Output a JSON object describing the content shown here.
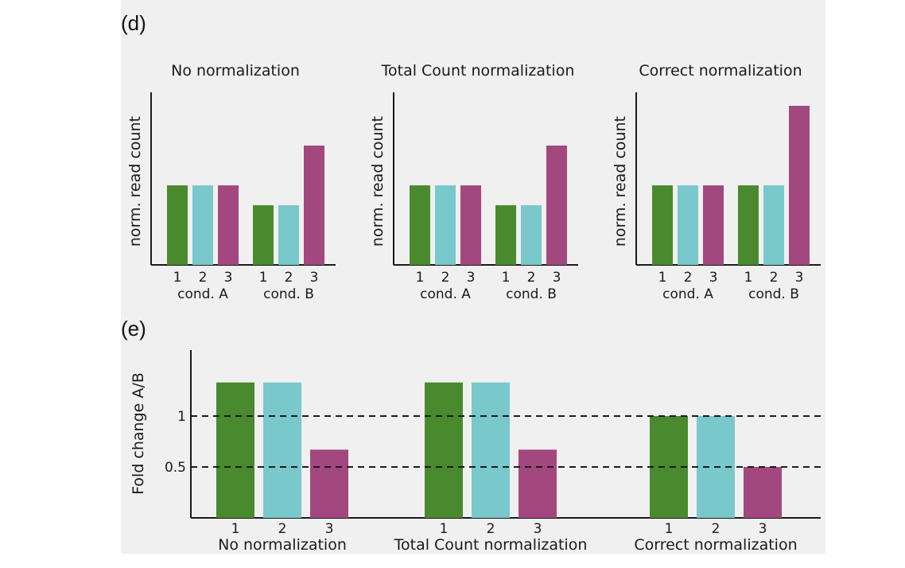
{
  "figure": {
    "panel_d_label": "(d)",
    "panel_e_label": "(e)"
  },
  "colors": {
    "rep1": "#4a8a2e",
    "rep2": "#79c8cc",
    "rep3": "#a3487e",
    "axis": "#1a1a1a"
  },
  "chart_data": [
    {
      "type": "bar",
      "title": "No normalization",
      "ylabel": "norm. read count",
      "groups": [
        "cond. A",
        "cond. B"
      ],
      "categories": [
        "1",
        "2",
        "3"
      ],
      "values": [
        [
          1.0,
          1.0,
          1.0
        ],
        [
          0.75,
          0.75,
          1.5
        ]
      ],
      "ylim": [
        0,
        2.0
      ]
    },
    {
      "type": "bar",
      "title": "Total Count normalization",
      "ylabel": "norm. read count",
      "groups": [
        "cond. A",
        "cond. B"
      ],
      "categories": [
        "1",
        "2",
        "3"
      ],
      "values": [
        [
          1.0,
          1.0,
          1.0
        ],
        [
          0.75,
          0.75,
          1.5
        ]
      ],
      "ylim": [
        0,
        2.0
      ]
    },
    {
      "type": "bar",
      "title": "Correct normalization",
      "ylabel": "norm. read count",
      "groups": [
        "cond. A",
        "cond. B"
      ],
      "categories": [
        "1",
        "2",
        "3"
      ],
      "values": [
        [
          1.0,
          1.0,
          1.0
        ],
        [
          1.0,
          1.0,
          2.0
        ]
      ],
      "ylim": [
        0,
        2.0
      ]
    },
    {
      "type": "bar",
      "title": "",
      "ylabel": "Fold change A/B",
      "groups": [
        "No normalization",
        "Total Count normalization",
        "Correct normalization"
      ],
      "categories": [
        "1",
        "2",
        "3"
      ],
      "values": [
        [
          1.33,
          1.33,
          0.67
        ],
        [
          1.33,
          1.33,
          0.67
        ],
        [
          1.0,
          1.0,
          0.5
        ]
      ],
      "yticks": [
        0.5,
        1
      ],
      "ytick_labels": [
        "0.5",
        "1"
      ],
      "reference_lines": [
        0.5,
        1
      ],
      "ylim": [
        0,
        1.65
      ]
    }
  ]
}
